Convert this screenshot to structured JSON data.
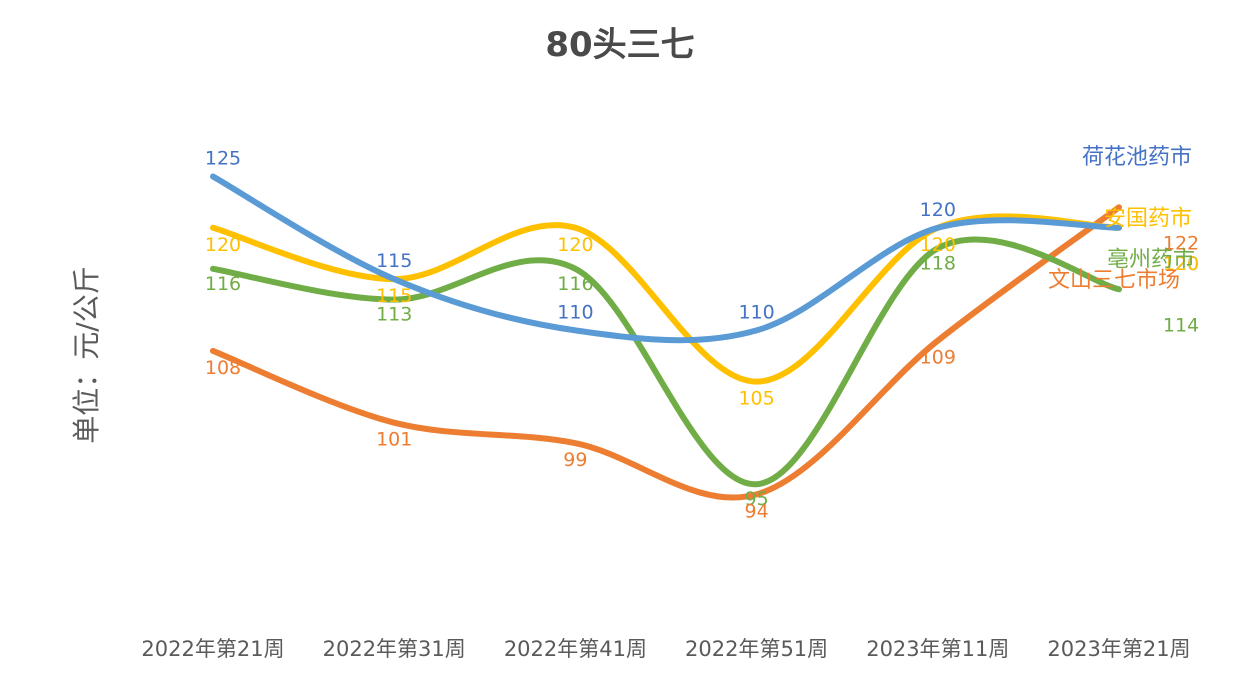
{
  "chart_data": {
    "type": "line",
    "title": "80头三七",
    "xlabel": "",
    "ylabel": "单位：元/公斤",
    "categories": [
      "2022年第21周",
      "2022年第31周",
      "2022年第41周",
      "2022年第51周",
      "2023年第11周",
      "2023年第21周"
    ],
    "ylim": [
      80,
      135
    ],
    "grid": false,
    "smooth": true,
    "series": [
      {
        "name": "荷花池药市",
        "color": "#5b9bd5",
        "label_color": "#4472c4",
        "values": [
          125,
          115,
          110,
          110,
          120,
          120
        ]
      },
      {
        "name": "安国药市",
        "color": "#ffc000",
        "label_color": "#ffc000",
        "values": [
          120,
          115,
          120,
          105,
          120,
          120
        ]
      },
      {
        "name": "亳州药市",
        "color": "#70ad47",
        "label_color": "#70ad47",
        "values": [
          116,
          113,
          116,
          95,
          118,
          114
        ]
      },
      {
        "name": "文山三七市场",
        "color": "#ed7d31",
        "label_color": "#ed7d31",
        "values": [
          108,
          101,
          99,
          94,
          109,
          122
        ]
      }
    ]
  }
}
